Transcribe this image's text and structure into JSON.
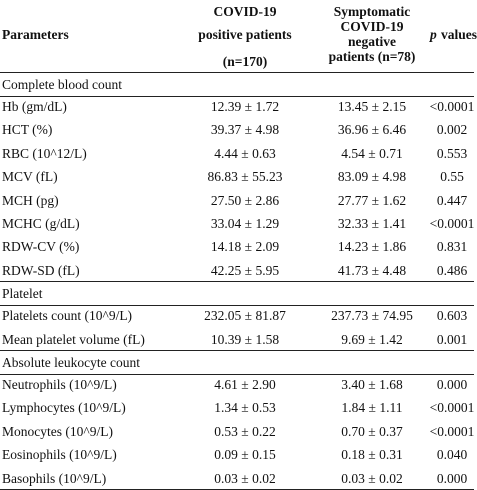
{
  "header": {
    "parameters": "Parameters",
    "col1": [
      "COVID-19",
      "positive patients",
      "(n=170)"
    ],
    "col2": [
      "Symptomatic",
      "COVID-19",
      "negative",
      "patients (n=78)"
    ],
    "col3_italic": "p",
    "col3_rest": "values"
  },
  "sections": [
    {
      "title": "Complete blood count",
      "rows": [
        [
          "Hb (gm/dL)",
          "12.39 ± 1.72",
          "13.45 ± 2.15",
          "<0.0001"
        ],
        [
          "HCT (%)",
          "39.37 ± 4.98",
          "36.96 ± 6.46",
          "0.002"
        ],
        [
          "RBC (10^12/L)",
          "4.44 ± 0.63",
          "4.54 ± 0.71",
          "0.553"
        ],
        [
          "MCV (fL)",
          "86.83 ± 55.23",
          "83.09 ± 4.98",
          "0.55"
        ],
        [
          "MCH (pg)",
          "27.50 ± 2.86",
          "27.77 ± 1.62",
          "0.447"
        ],
        [
          "MCHC  (g/dL)",
          "33.04 ± 1.29",
          "32.33 ± 1.41",
          "<0.0001"
        ],
        [
          "RDW-CV (%)",
          "14.18 ± 2.09",
          "14.23 ± 1.86",
          "0.831"
        ],
        [
          "RDW-SD (fL)",
          "42.25 ± 5.95",
          "41.73 ± 4.48",
          "0.486"
        ]
      ]
    },
    {
      "title": "Platelet",
      "rows": [
        [
          "Platelets count  (10^9/L)",
          "232.05 ± 81.87",
          "237.73 ± 74.95",
          "0.603"
        ],
        [
          "Mean platelet volume (fL)",
          "10.39 ± 1.58",
          "9.69 ± 1.42",
          "0.001"
        ]
      ]
    },
    {
      "title": "Absolute leukocyte count",
      "rows": [
        [
          "Neutrophils  (10^9/L)",
          "4.61 ± 2.90",
          "3.40 ± 1.68",
          "0.000"
        ],
        [
          "Lymphocytes (10^9/L)",
          "1.34 ± 0.53",
          "1.84 ± 1.11",
          "<0.0001"
        ],
        [
          "Monocytes  (10^9/L)",
          "0.53 ± 0.22",
          "0.70 ± 0.37",
          "<0.0001"
        ],
        [
          "Eosinophils (10^9/L)",
          "0.09 ± 0.15",
          "0.18 ± 0.31",
          "0.040"
        ],
        [
          "Basophils (10^9/L)",
          "0.03 ± 0.02",
          "0.03 ± 0.02",
          "0.000"
        ]
      ]
    }
  ]
}
